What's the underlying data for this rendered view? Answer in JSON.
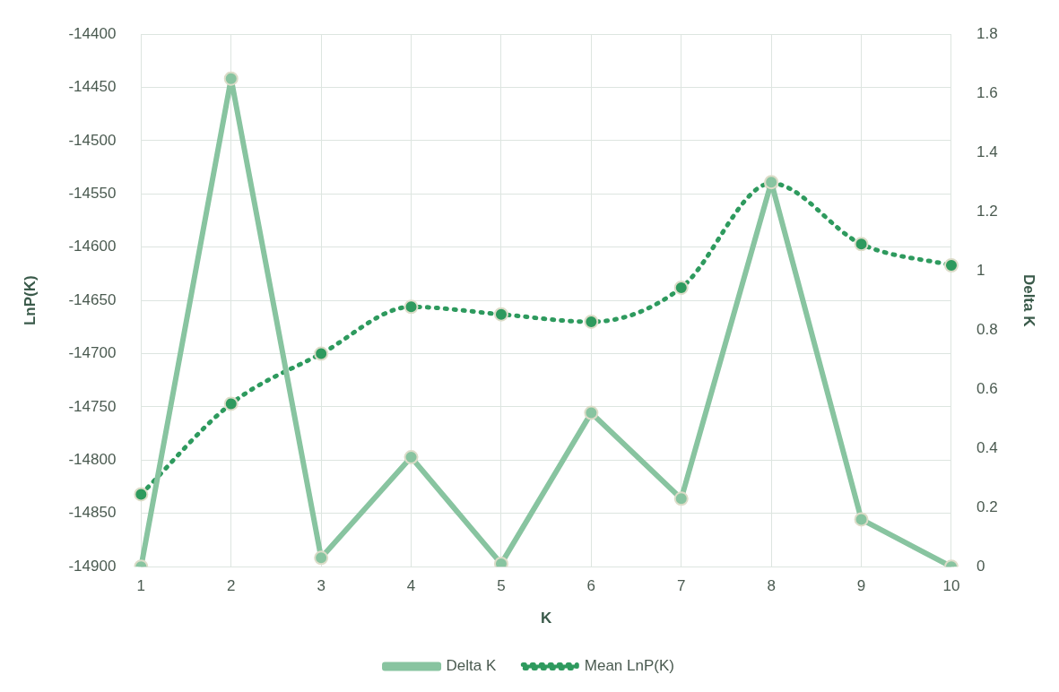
{
  "chart_data": {
    "type": "line",
    "xlabel": "K",
    "ylabel": "LnP(K)",
    "y2label": "Delta K",
    "categories": [
      "1",
      "2",
      "3",
      "4",
      "5",
      "6",
      "7",
      "8",
      "9",
      "10"
    ],
    "series": [
      {
        "name": "Mean LnP(K)",
        "color": "#2e9a5e",
        "line_style": "dotted",
        "values": [
          -14832,
          -14747,
          -14700,
          -14656,
          -14663,
          -14670,
          -14638,
          -14540,
          -14597,
          -14617
        ]
      },
      {
        "name": "Delta K",
        "color": "#88c4a0",
        "line_style": "solid",
        "axis": "y2",
        "values": [
          0,
          1.65,
          0.03,
          0.37,
          0.01,
          0.52,
          0.23,
          1.3,
          0.16,
          0
        ]
      }
    ],
    "ylim": [
      -14900,
      -14400
    ],
    "yticks": [
      -14900,
      -14850,
      -14800,
      -14750,
      -14700,
      -14650,
      -14600,
      -14550,
      -14500,
      -14450,
      -14400
    ],
    "y2lim": [
      0,
      1.8
    ],
    "y2ticks": [
      0,
      0.2,
      0.4,
      0.6,
      0.8,
      1,
      1.2,
      1.4,
      1.6,
      1.8
    ],
    "grid": true,
    "legend": "bottom",
    "marker": "circle"
  }
}
